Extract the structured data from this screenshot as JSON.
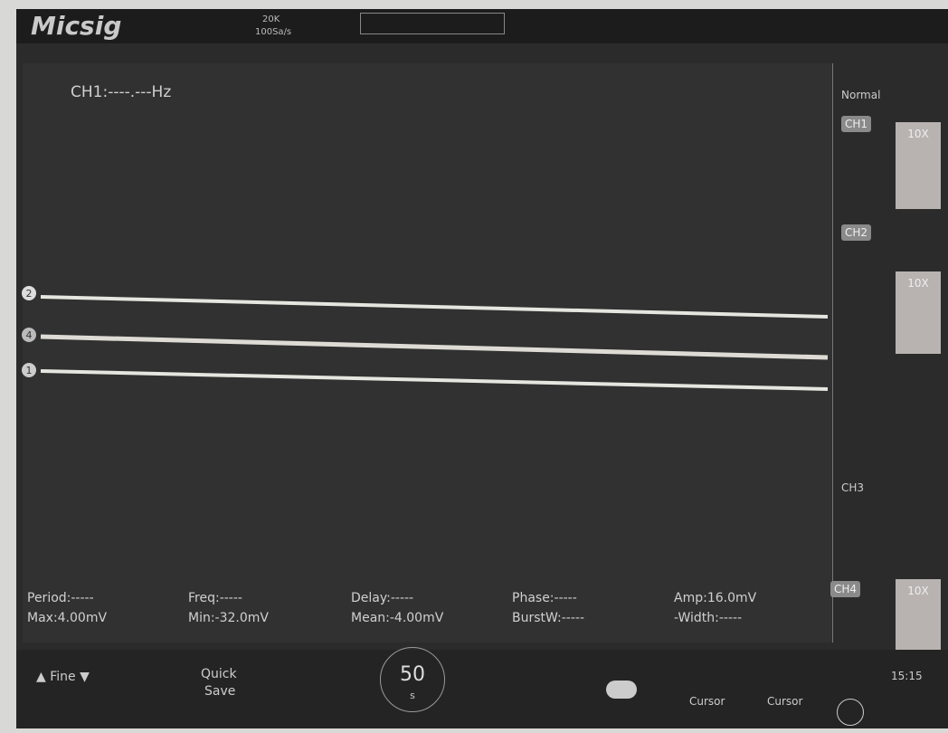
{
  "header": {
    "brand": "Micsig",
    "timebase": "20K",
    "sample_rate": "100Sa/s"
  },
  "frequency_readout": "CH1:----.---Hz",
  "trigger_mode": "Normal",
  "channels": [
    {
      "label": "CH1",
      "probe": "10X",
      "marker": "1"
    },
    {
      "label": "CH2",
      "probe": "10X",
      "marker": "2"
    },
    {
      "label": "CH3"
    },
    {
      "label": "CH4",
      "probe": "10X",
      "marker": "4"
    }
  ],
  "measurements": [
    [
      "Period:-----",
      "Max:4.00mV"
    ],
    [
      "Freq:-----",
      "Min:-32.0mV"
    ],
    [
      "Delay:-----",
      "Mean:-4.00mV"
    ],
    [
      "Phase:-----",
      "BurstW:-----"
    ],
    [
      "Amp:16.0mV",
      "-Width:-----"
    ]
  ],
  "toolbar": {
    "fine": "Fine",
    "quick_save": [
      "Quick",
      "Save"
    ],
    "knob_value": "50",
    "knob_unit": "s",
    "cursor_h": "Cursor",
    "cursor_v": "Cursor"
  },
  "clock": "15:15"
}
